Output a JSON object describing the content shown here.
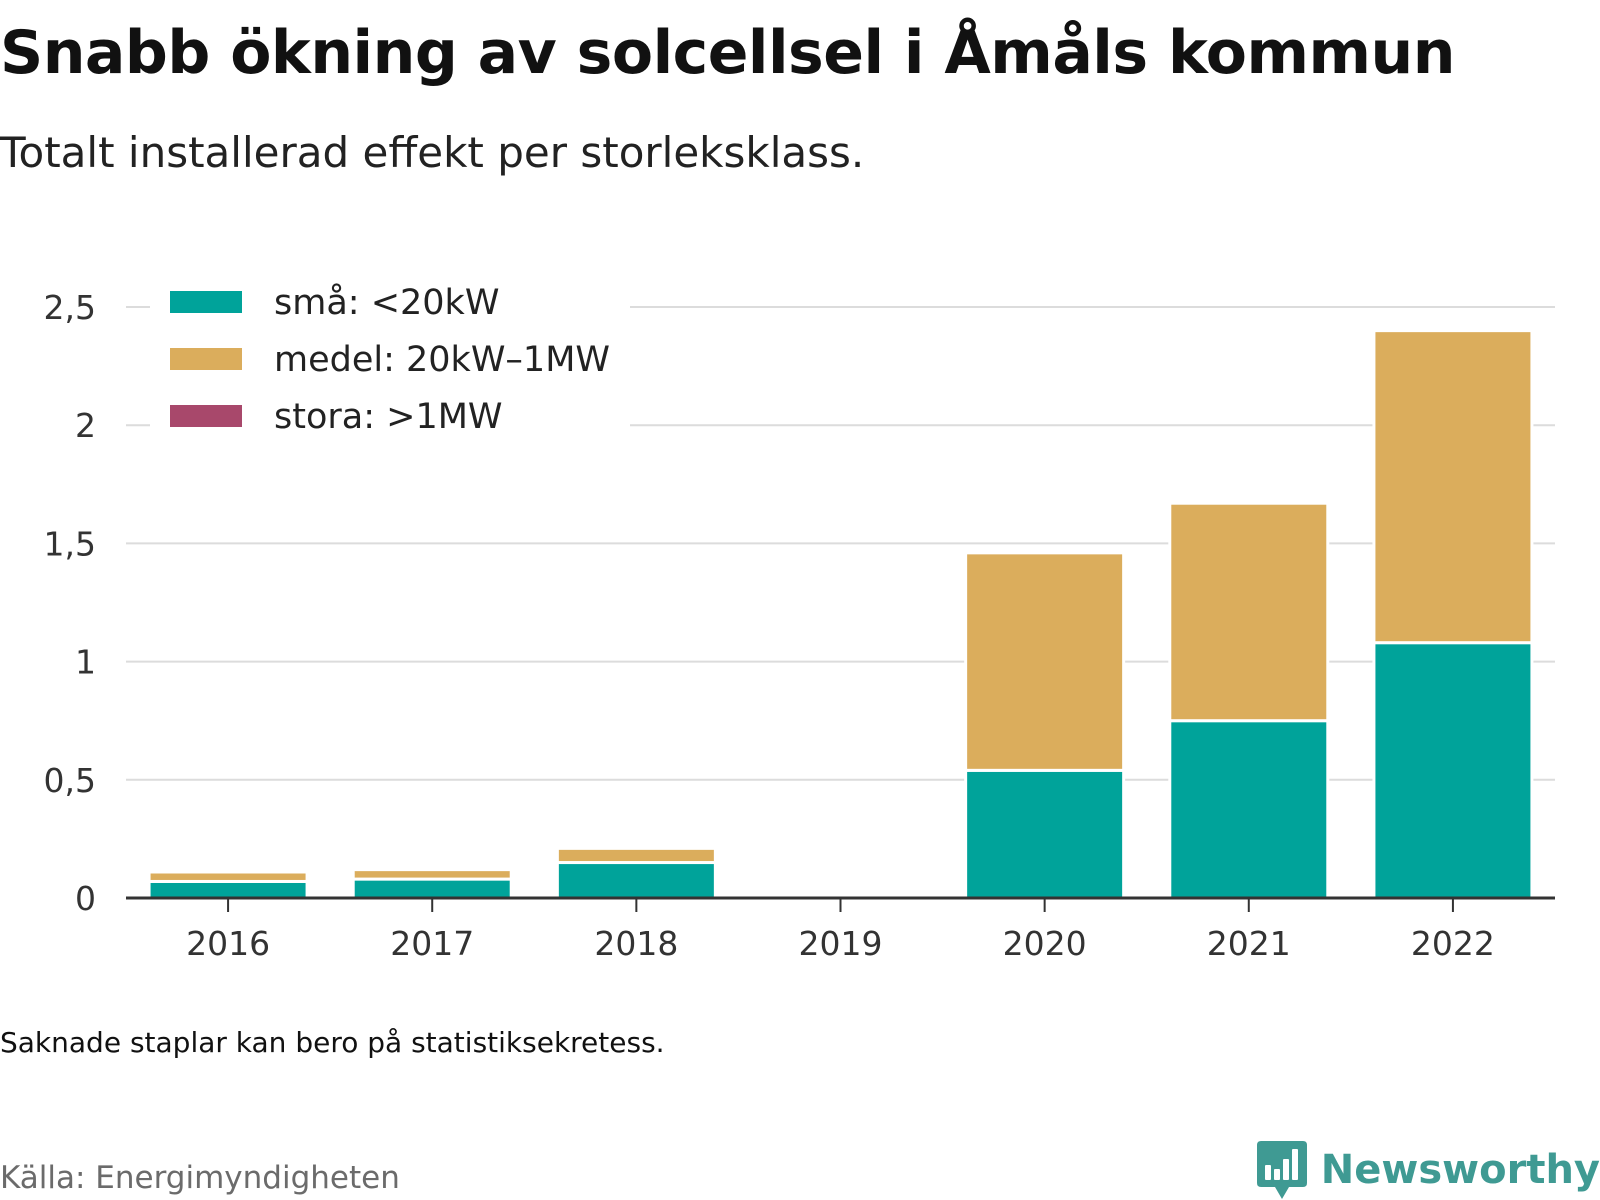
{
  "title": "Snabb ökning av solcellsel i Åmåls kommun",
  "subtitle": "Totalt installerad effekt per storleksklass.",
  "note": "Saknade staplar kan bero på statistiksekretess.",
  "source": "Källa: Energimyndigheten",
  "brand": {
    "name": "Newsworthy",
    "icon": "bar-chart-speech-bubble-icon",
    "color": "#3f9a93"
  },
  "chart_data": {
    "type": "bar",
    "stacked": true,
    "categories": [
      "2016",
      "2017",
      "2018",
      "2019",
      "2020",
      "2021",
      "2022"
    ],
    "series": [
      {
        "name": "små: <20kW",
        "color": "#00a39a",
        "values": [
          0.07,
          0.08,
          0.15,
          null,
          0.54,
          0.75,
          1.08
        ]
      },
      {
        "name": "medel: 20kW–1MW",
        "color": "#dbad5c",
        "values": [
          0.04,
          0.04,
          0.06,
          null,
          0.92,
          0.92,
          1.32
        ]
      },
      {
        "name": "stora: >1MW",
        "color": "#a8486b",
        "values": [
          0,
          0,
          0,
          null,
          0,
          0,
          0
        ]
      }
    ],
    "ylim": [
      0,
      2.5
    ],
    "yticks": [
      0,
      0.5,
      1,
      1.5,
      2,
      2.5
    ],
    "ytick_labels": [
      "0",
      "0,5",
      "1",
      "1,5",
      "2",
      "2,5"
    ],
    "xlabel": "",
    "ylabel": "",
    "grid": true,
    "legend": "top-left"
  }
}
